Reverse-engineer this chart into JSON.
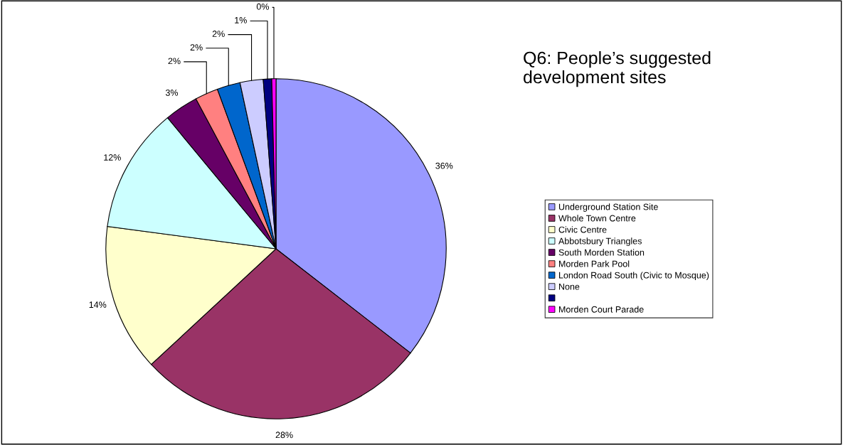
{
  "chart_data": {
    "type": "pie",
    "title": "Q6: People’s suggested\ndevelopment sites",
    "categories": [
      "Underground Station Site",
      "Whole Town Centre",
      "Civic Centre",
      "Abbotsbury Triangles",
      "South Morden Station",
      "Morden Park Pool",
      "London Road South (Civic to Mosque)",
      "None",
      null,
      "Morden Court Parade"
    ],
    "values": [
      35.5,
      27.6,
      14,
      11.9,
      3.2,
      2.2,
      2.2,
      2.2,
      0.8,
      0.4
    ],
    "value_labels": [
      "36%",
      "28%",
      "14%",
      "12%",
      "3%",
      "2%",
      "2%",
      "2%",
      "1%",
      "0%"
    ],
    "colors": [
      "#9999ff",
      "#993366",
      "#ffffcc",
      "#ccffff",
      "#660066",
      "#ff8080",
      "#0066cc",
      "#ccccff",
      "#000080",
      "#ff00ff"
    ],
    "legend": "right"
  }
}
